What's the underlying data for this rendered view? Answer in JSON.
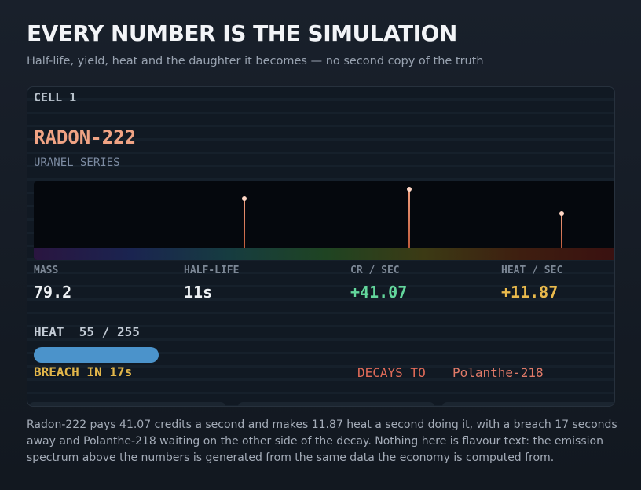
{
  "header": {
    "title": "EVERY NUMBER IS THE SIMULATION",
    "subtitle": "Half-life, yield, heat and the daughter it becomes — no second copy of the truth"
  },
  "card": {
    "cell": "CELL 1",
    "isotope": "RADON-222",
    "series": "URANEL SERIES",
    "stats": [
      {
        "label": "MASS",
        "value": "79.2"
      },
      {
        "label": "HALF-LIFE",
        "value": "11s"
      },
      {
        "label": "CR / SEC",
        "value": "+41.07"
      },
      {
        "label": "HEAT / SEC",
        "value": "+11.87"
      }
    ],
    "heat": {
      "label": "HEAT",
      "value": 55,
      "separator": "/",
      "max": 255
    },
    "breach": "BREACH IN 17s",
    "decay": {
      "label": "DECAYS TO",
      "daughter": "Polanthe-218"
    }
  },
  "description": "Radon-222 pays 41.07 credits a second and makes 11.87 heat a second doing it, with a breach 17 seconds away and Polanthe-218 waiting on the other side of the decay. Nothing here is flavour text: the emission spectrum above the numbers is generated from the same data the economy is computed from."
}
